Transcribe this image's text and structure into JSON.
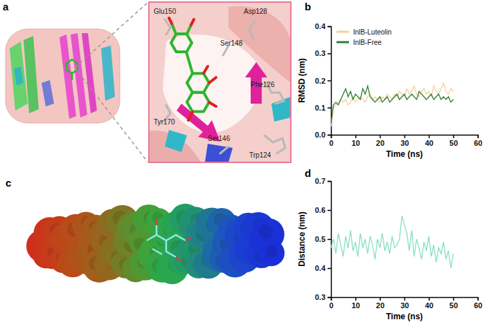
{
  "panels": [
    {
      "letter": "a",
      "labels": [
        "Glu150",
        "Asp128",
        "Ser148",
        "Phe126",
        "Tyr170",
        "Ser146",
        "Trp124"
      ]
    },
    {
      "letter": "c"
    }
  ],
  "chart_data": [
    {
      "type": "line",
      "panel_label": "b",
      "x_label": "Time (ns)",
      "y_label": "RMSD (nm)",
      "x": [
        0,
        1,
        2,
        3,
        4,
        5,
        6,
        7,
        8,
        9,
        10,
        11,
        12,
        13,
        14,
        15,
        16,
        17,
        18,
        19,
        20,
        21,
        22,
        23,
        24,
        25,
        26,
        27,
        28,
        29,
        30,
        31,
        32,
        33,
        34,
        35,
        36,
        37,
        38,
        39,
        40,
        41,
        42,
        43,
        44,
        45,
        46,
        47,
        48,
        49,
        50
      ],
      "xlim": [
        0,
        60
      ],
      "xticks": [
        0,
        10,
        20,
        30,
        40,
        50,
        60
      ],
      "ylim": [
        0,
        0.4
      ],
      "yticks": [
        {
          "value": 0,
          "label": "0.0"
        },
        0.1,
        0.2,
        0.3,
        0.4
      ],
      "legend": "upper left",
      "series": [
        {
          "name": "InlB-Luteolin",
          "color": "#f5cf9e",
          "values": [
            0.03,
            0.1,
            0.11,
            0.12,
            0.13,
            0.12,
            0.13,
            0.11,
            0.12,
            0.14,
            0.12,
            0.13,
            0.14,
            0.13,
            0.12,
            0.14,
            0.15,
            0.13,
            0.14,
            0.13,
            0.12,
            0.14,
            0.13,
            0.15,
            0.14,
            0.13,
            0.15,
            0.14,
            0.16,
            0.15,
            0.14,
            0.17,
            0.15,
            0.16,
            0.18,
            0.15,
            0.14,
            0.16,
            0.17,
            0.15,
            0.16,
            0.14,
            0.18,
            0.16,
            0.15,
            0.17,
            0.19,
            0.16,
            0.15,
            0.17,
            0.16
          ]
        },
        {
          "name": "InlB-Free",
          "color": "#2e7d32",
          "values": [
            0.04,
            0.11,
            0.12,
            0.11,
            0.13,
            0.15,
            0.17,
            0.14,
            0.16,
            0.13,
            0.15,
            0.14,
            0.13,
            0.17,
            0.15,
            0.18,
            0.14,
            0.13,
            0.12,
            0.13,
            0.14,
            0.12,
            0.13,
            0.14,
            0.12,
            0.13,
            0.14,
            0.15,
            0.13,
            0.14,
            0.15,
            0.13,
            0.14,
            0.15,
            0.14,
            0.13,
            0.16,
            0.15,
            0.14,
            0.13,
            0.14,
            0.15,
            0.13,
            0.14,
            0.15,
            0.13,
            0.14,
            0.13,
            0.14,
            0.12,
            0.13
          ]
        }
      ]
    },
    {
      "type": "line",
      "panel_label": "d",
      "x_label": "Time (ns)",
      "y_label": "Distance (nm)",
      "x": [
        0,
        1,
        2,
        3,
        4,
        5,
        6,
        7,
        8,
        9,
        10,
        11,
        12,
        13,
        14,
        15,
        16,
        17,
        18,
        19,
        20,
        21,
        22,
        23,
        24,
        25,
        26,
        27,
        28,
        29,
        30,
        31,
        32,
        33,
        34,
        35,
        36,
        37,
        38,
        39,
        40,
        41,
        42,
        43,
        44,
        45,
        46,
        47,
        48,
        49,
        50
      ],
      "xlim": [
        0,
        60
      ],
      "xticks": [
        0,
        10,
        20,
        30,
        40,
        50,
        60
      ],
      "ylim": [
        0.3,
        0.7
      ],
      "yticks": [
        0.3,
        0.4,
        0.5,
        0.6,
        0.7
      ],
      "color": "#86dfc6",
      "values": [
        0.47,
        0.5,
        0.45,
        0.52,
        0.48,
        0.44,
        0.51,
        0.47,
        0.53,
        0.46,
        0.49,
        0.44,
        0.52,
        0.47,
        0.5,
        0.45,
        0.51,
        0.48,
        0.43,
        0.5,
        0.47,
        0.52,
        0.46,
        0.49,
        0.45,
        0.51,
        0.47,
        0.48,
        0.5,
        0.58,
        0.55,
        0.52,
        0.46,
        0.53,
        0.44,
        0.5,
        0.47,
        0.43,
        0.49,
        0.46,
        0.51,
        0.44,
        0.48,
        0.42,
        0.47,
        0.45,
        0.49,
        0.43,
        0.46,
        0.4,
        0.45
      ]
    }
  ]
}
